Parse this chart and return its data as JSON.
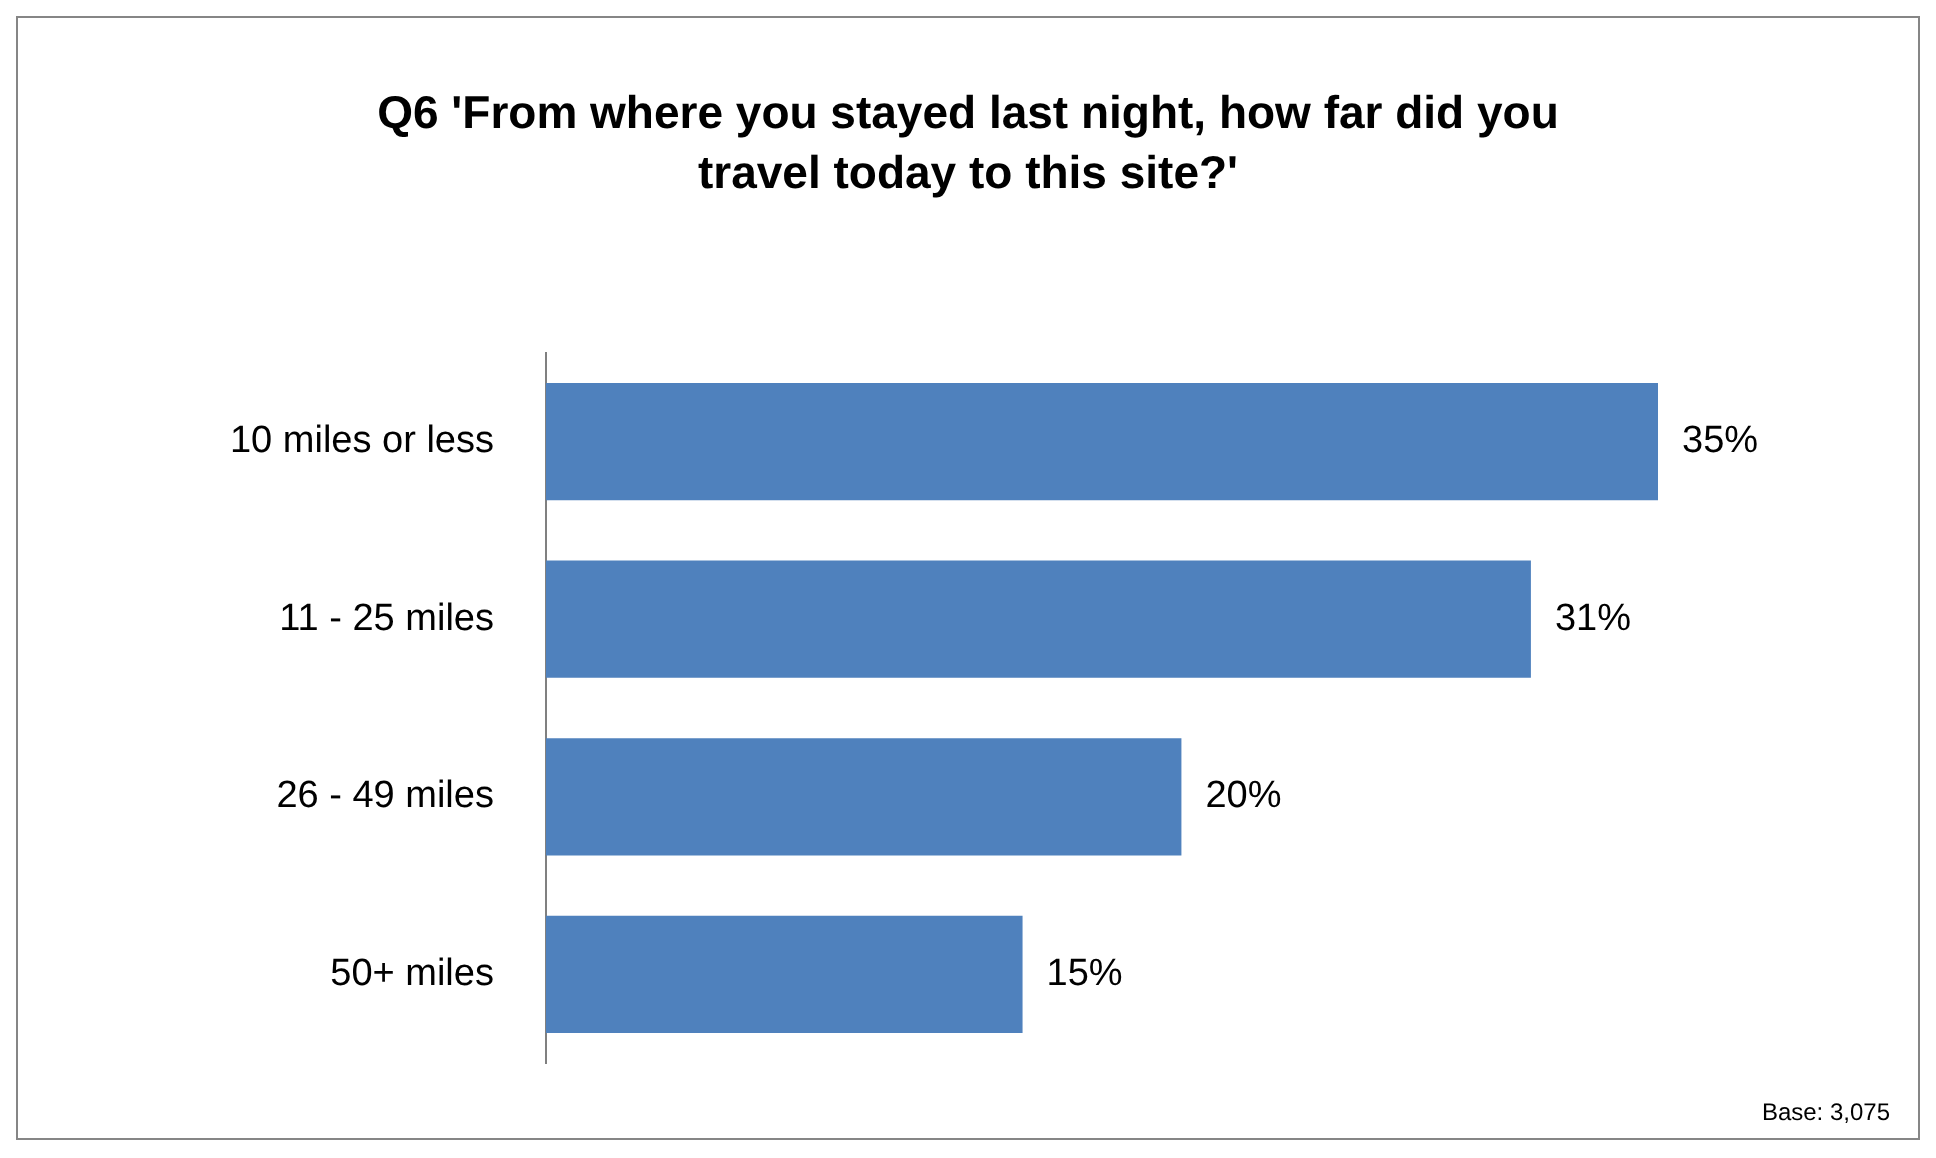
{
  "chart_data": {
    "type": "bar",
    "orientation": "horizontal",
    "title": "Q6 'From where you stayed last night, how far did you travel today to this site?'",
    "categories": [
      "10 miles or less",
      "11 - 25 miles",
      "26 - 49 miles",
      "50+ miles"
    ],
    "values": [
      35,
      31,
      20,
      15
    ],
    "value_labels": [
      "35%",
      "31%",
      "20%",
      "15%"
    ],
    "color": "#4f81bd",
    "annotations": [
      "Base: 3,075"
    ]
  }
}
